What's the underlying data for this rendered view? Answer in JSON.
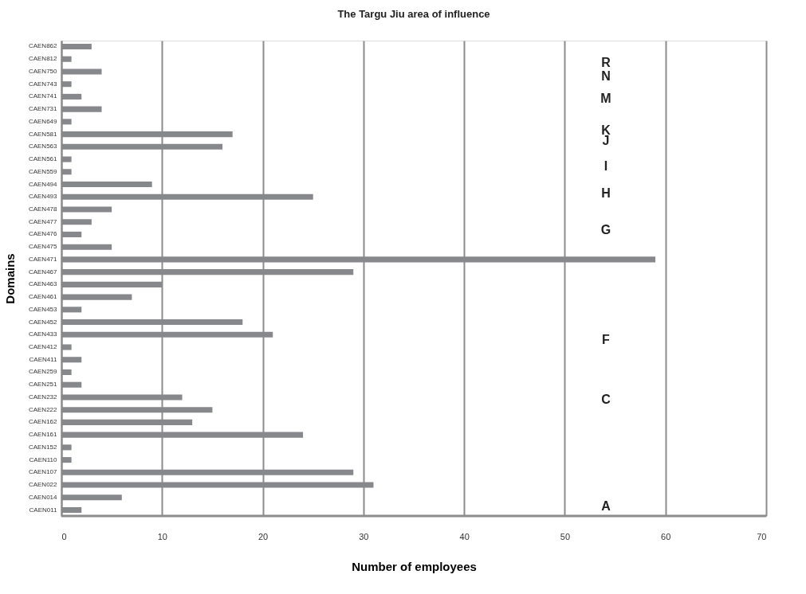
{
  "chart_data": {
    "type": "bar",
    "orientation": "horizontal",
    "title": "The Targu Jiu area of influence",
    "xlabel": "Number of employees",
    "ylabel": "Domains",
    "categories": [
      "CAEN862",
      "CAEN812",
      "CAEN750",
      "CAEN743",
      "CAEN741",
      "CAEN731",
      "CAEN649",
      "CAEN581",
      "CAEN563",
      "CAEN561",
      "CAEN559",
      "CAEN494",
      "CAEN493",
      "CAEN478",
      "CAEN477",
      "CAEN476",
      "CAEN475",
      "CAEN471",
      "CAEN467",
      "CAEN463",
      "CAEN461",
      "CAEN453",
      "CAEN452",
      "CAEN433",
      "CAEN412",
      "CAEN411",
      "CAEN259",
      "CAEN251",
      "CAEN232",
      "CAEN222",
      "CAEN162",
      "CAEN161",
      "CAEN152",
      "CAEN110",
      "CAEN107",
      "CAEN022",
      "CAEN014",
      "CAEN011"
    ],
    "values": [
      3,
      1,
      4,
      1,
      2,
      4,
      1,
      17,
      16,
      1,
      1,
      9,
      25,
      5,
      3,
      2,
      5,
      59,
      29,
      10,
      7,
      2,
      18,
      21,
      1,
      2,
      1,
      2,
      12,
      15,
      13,
      24,
      1,
      1,
      29,
      31,
      6,
      2
    ],
    "color": "#87888c",
    "xlim": [
      0,
      70
    ],
    "xticks": [
      0,
      10,
      20,
      30,
      40,
      50,
      60,
      70
    ],
    "grid": "x",
    "annotations": [
      "R",
      "N",
      "M",
      "K",
      "J",
      "I",
      "H",
      "G",
      "F",
      "C",
      "A"
    ]
  }
}
